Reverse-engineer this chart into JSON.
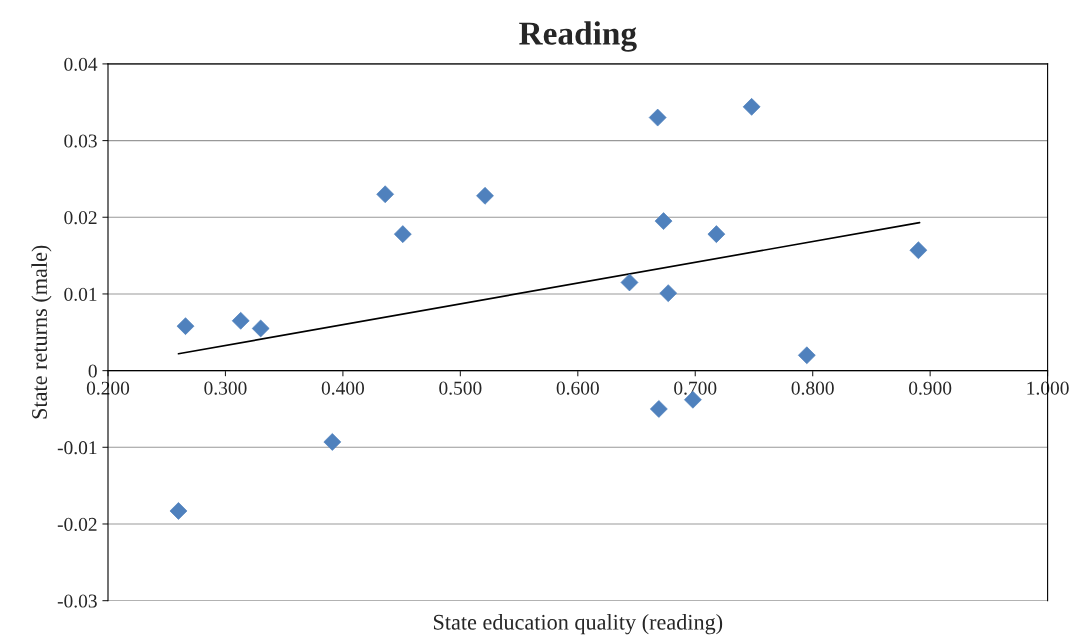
{
  "chart_data": {
    "type": "scatter",
    "title": "Reading",
    "xlabel": "State education quality (reading)",
    "ylabel": "State returns (male)",
    "series": [
      {
        "color": "#4f81bd",
        "marker": "diamond",
        "x": [
          0.266,
          0.26,
          0.313,
          0.33,
          0.391,
          0.436,
          0.451,
          0.521,
          0.644,
          0.668,
          0.673,
          0.677,
          0.669,
          0.698,
          0.718,
          0.748,
          0.795,
          0.89
        ],
        "values": [
          0.0058,
          -0.0183,
          0.0065,
          0.0055,
          -0.0093,
          0.023,
          0.0178,
          0.0228,
          0.0115,
          0.033,
          0.0195,
          0.0101,
          -0.005,
          -0.0038,
          0.0178,
          0.0344,
          0.002,
          0.0157
        ]
      },
      {
        "type": "line",
        "color": "#000000",
        "marker": "none",
        "x": [
          0.26,
          0.891
        ],
        "values": [
          0.0022,
          0.0193
        ]
      }
    ],
    "xlim": [
      0.2,
      1.0
    ],
    "xticks": [
      {
        "value": 0.2,
        "label": "0.200"
      },
      {
        "value": 0.3,
        "label": "0.300"
      },
      {
        "value": 0.4,
        "label": "0.400"
      },
      {
        "value": 0.5,
        "label": "0.500"
      },
      {
        "value": 0.6,
        "label": "0.600"
      },
      {
        "value": 0.7,
        "label": "0.700"
      },
      {
        "value": 0.8,
        "label": "0.800"
      },
      {
        "value": 0.9,
        "label": "0.900"
      },
      {
        "value": 1.0,
        "label": "1.000"
      }
    ],
    "ylim": [
      -0.03,
      0.04
    ],
    "yticks": [
      -0.03,
      -0.02,
      -0.01,
      0,
      0.01,
      0.02,
      0.03,
      0.04
    ],
    "grid": "y",
    "legend": false
  }
}
